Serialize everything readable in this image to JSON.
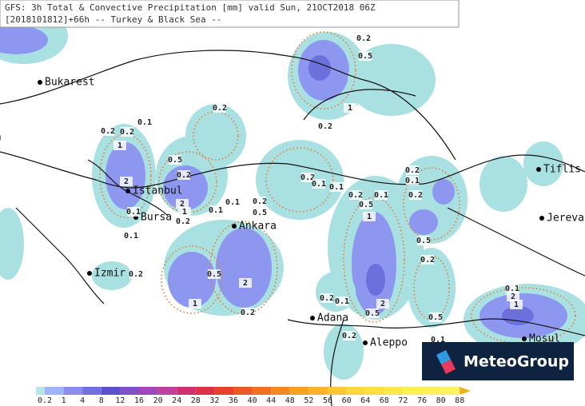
{
  "header": {
    "line1": "GFS: 3h Total & Convective Precipitation [mm] valid Sun, 21OCT2018 06Z",
    "line2": "[2018101812]+66h -- Turkey & Black Sea --"
  },
  "cities": [
    "Bukarest",
    "ia",
    "Istanbul",
    "Bursa",
    "Ankara",
    "Izmir",
    "Adana",
    "Aleppo",
    "Tiflis",
    "Jereva",
    "Mosul"
  ],
  "contour_labels": [
    "0.2",
    "0.5",
    "0.2",
    "1",
    "0.2",
    "0.2",
    "0.2",
    "0.1",
    "1",
    "2",
    "0.5",
    "0.2",
    "2",
    "1",
    "0.2",
    "0.1",
    "0.1",
    "0.2",
    "0.1",
    "0.1",
    "0.2",
    "0.5",
    "0.5",
    "2",
    "1",
    "0.2",
    "0.2",
    "0.1",
    "0.1",
    "0.2",
    "0.5",
    "1",
    "0.1",
    "0.2",
    "0.1",
    "0.2",
    "0.5",
    "0.2",
    "2",
    "0.5",
    "0.2",
    "0.1",
    "0.5",
    "0.2",
    "0.1",
    "0.1",
    "2",
    "1"
  ],
  "legend": {
    "labels": [
      "0.2",
      "1",
      "4",
      "8",
      "12",
      "16",
      "20",
      "24",
      "28",
      "32",
      "36",
      "40",
      "44",
      "48",
      "52",
      "56",
      "60",
      "64",
      "68",
      "72",
      "76",
      "80",
      "88"
    ]
  },
  "logo": "MeteoGroup"
}
